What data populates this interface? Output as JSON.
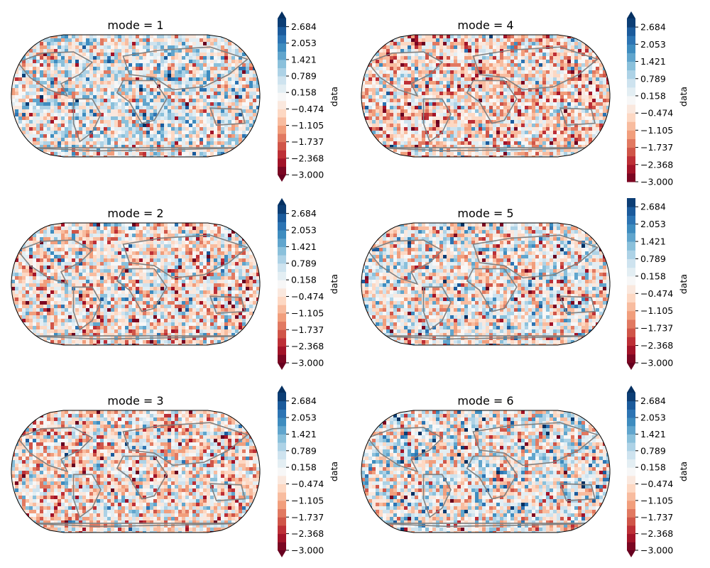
{
  "chart_data": {
    "type": "heatmap",
    "projection": "Robinson",
    "overlay": "coastlines",
    "colormap": "RdBu",
    "grid": false,
    "color_scale": {
      "levels": [
        -3.0,
        -2.684,
        -2.368,
        -2.053,
        -1.737,
        -1.421,
        -1.105,
        -0.789,
        -0.474,
        -0.158,
        0.158,
        0.474,
        0.789,
        1.105,
        1.421,
        1.737,
        2.053,
        2.368,
        2.684,
        3.0
      ],
      "tick_labels": [
        "−3.000",
        "−2.368",
        "−1.737",
        "−1.105",
        "−0.474",
        "0.158",
        "0.789",
        "1.421",
        "2.053",
        "2.684"
      ],
      "label": "data",
      "low_color": "#67001f",
      "high_color": "#053061"
    },
    "panels": [
      {
        "title": "mode = 1",
        "mode": 1,
        "extend": "both",
        "bias": 0.15
      },
      {
        "title": "mode = 4",
        "mode": 4,
        "extend": "max",
        "bias": -0.45
      },
      {
        "title": "mode = 2",
        "mode": 2,
        "extend": "both",
        "bias": -0.3
      },
      {
        "title": "mode = 5",
        "mode": 5,
        "extend": "min",
        "bias": -0.05
      },
      {
        "title": "mode = 3",
        "mode": 3,
        "extend": "both",
        "bias": -0.35
      },
      {
        "title": "mode = 6",
        "mode": 6,
        "extend": "both",
        "bias": 0.05
      }
    ]
  }
}
